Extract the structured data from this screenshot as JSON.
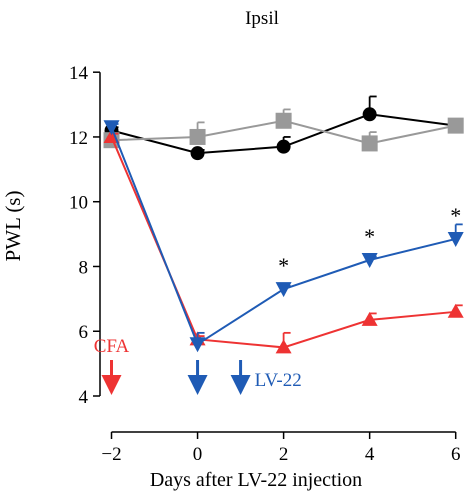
{
  "chart_data": {
    "type": "line",
    "title": "Ipsil",
    "xlabel": "Days after LV-22 injection",
    "ylabel": "PWL (s)",
    "xlim": [
      -2.5,
      6.1
    ],
    "ylim": [
      4,
      14.5
    ],
    "xticks": [
      -2,
      0,
      2,
      4,
      6
    ],
    "xtick_labels": [
      "−2",
      "0",
      "2",
      "4",
      "6"
    ],
    "yticks": [
      4,
      6,
      8,
      10,
      12,
      14
    ],
    "grid": false,
    "legend": "none",
    "series": [
      {
        "color": "#000000",
        "marker": "circle",
        "x": [
          -2,
          0,
          2,
          4,
          6
        ],
        "y": [
          12.2,
          11.5,
          11.7,
          12.7,
          12.35
        ],
        "err": [
          0.1,
          0.1,
          0.3,
          0.55,
          0.1
        ]
      },
      {
        "color": "#999999",
        "marker": "square",
        "x": [
          -2,
          0,
          2,
          4,
          6
        ],
        "y": [
          11.9,
          12.0,
          12.5,
          11.8,
          12.35
        ],
        "err": [
          0.1,
          0.45,
          0.35,
          0.35,
          0.1
        ]
      },
      {
        "color": "#ee3333",
        "marker": "triangle-up",
        "x": [
          -2,
          0,
          2,
          4,
          6
        ],
        "y": [
          12.0,
          5.75,
          5.5,
          6.35,
          6.6
        ],
        "err": [
          0.1,
          0.1,
          0.45,
          0.2,
          0.2
        ]
      },
      {
        "color": "#1f5bb5",
        "marker": "triangle-down",
        "x": [
          -2,
          0,
          2,
          4,
          6
        ],
        "y": [
          12.3,
          5.6,
          7.3,
          8.2,
          8.85
        ],
        "err": [
          0.1,
          0.35,
          0.1,
          0.1,
          0.45
        ]
      }
    ],
    "significance": [
      {
        "x": 2,
        "y": 7.3,
        "label": "*",
        "color": "#000000"
      },
      {
        "x": 4,
        "y": 8.2,
        "label": "*",
        "color": "#000000"
      },
      {
        "x": 6,
        "y": 8.85,
        "label": "*",
        "color": "#000000"
      }
    ],
    "annotations": [
      {
        "text": "CFA",
        "color": "#ee3333",
        "arrow_x": -2
      },
      {
        "text": "LV-22",
        "color": "#1f5bb5",
        "arrow_x": [
          0,
          1
        ]
      }
    ]
  }
}
